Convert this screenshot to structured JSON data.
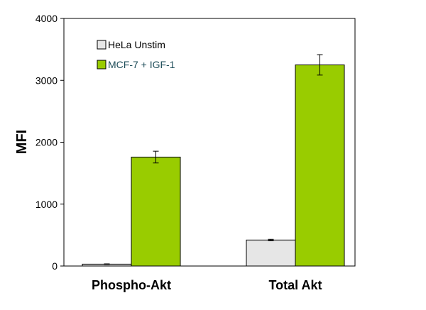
{
  "chart_data": {
    "type": "bar",
    "title": "",
    "xlabel": "",
    "ylabel": "MFI",
    "ylim": [
      0,
      4000
    ],
    "yticks": [
      0,
      1000,
      2000,
      3000,
      4000
    ],
    "categories": [
      "Phospho-Akt",
      "Total Akt"
    ],
    "grid": false,
    "legend_position": "top-left",
    "error_bars": true,
    "series": [
      {
        "name": "HeLa Unstim",
        "color": "#e6e6e6",
        "values": [
          30,
          420
        ],
        "errors": [
          5,
          12
        ]
      },
      {
        "name": "MCF-7 + IGF-1",
        "color": "#99cc00",
        "values": [
          1760,
          3250
        ],
        "errors": [
          95,
          165
        ]
      }
    ]
  }
}
